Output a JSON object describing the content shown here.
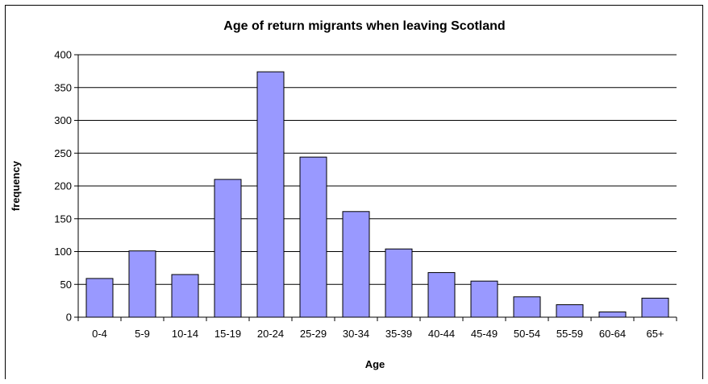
{
  "chart_data": {
    "type": "bar",
    "title": "Age of return migrants when leaving Scotland",
    "xlabel": "Age",
    "ylabel": "frequency",
    "categories": [
      "0-4",
      "5-9",
      "10-14",
      "15-19",
      "20-24",
      "25-29",
      "30-34",
      "35-39",
      "40-44",
      "45-49",
      "50-54",
      "55-59",
      "60-64",
      "65+"
    ],
    "values": [
      59,
      101,
      65,
      210,
      374,
      244,
      161,
      104,
      68,
      55,
      31,
      19,
      8,
      29
    ],
    "ylim": [
      0,
      400
    ],
    "yticks": [
      0,
      50,
      100,
      150,
      200,
      250,
      300,
      350,
      400
    ],
    "grid": true,
    "legend": "none",
    "colors": {
      "bar_fill": "#9999ff",
      "bar_stroke": "#000000",
      "gridline": "#000000"
    }
  }
}
